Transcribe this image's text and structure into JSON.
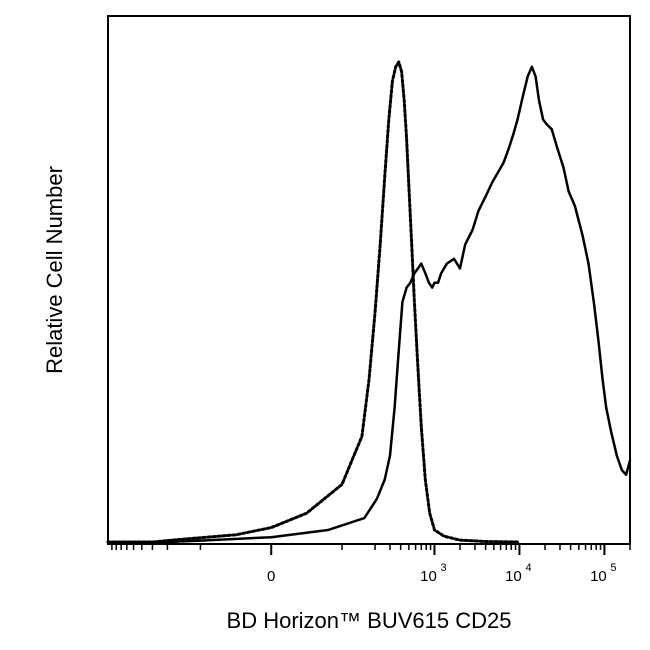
{
  "chart_data": {
    "type": "line",
    "xlabel": "BD Horizon™ BUV615 CD25",
    "ylabel": "Relative Cell Number",
    "x_scale": "biexponential",
    "xlim": [
      -1000,
      200000
    ],
    "ylim": [
      0,
      100
    ],
    "y_ticks_shown": false,
    "grid": false,
    "legend": "none",
    "x_tick_labels": [
      {
        "value": 0,
        "base": "0",
        "exponent": ""
      },
      {
        "value": 1000,
        "base": "10",
        "exponent": "3"
      },
      {
        "value": 10000,
        "base": "10",
        "exponent": "4"
      },
      {
        "value": 100000,
        "base": "10",
        "exponent": "5"
      }
    ],
    "series": [
      {
        "style": "dotted",
        "color": "#000000",
        "points": [
          [
            -1000,
            0
          ],
          [
            -300,
            0
          ],
          [
            -150,
            0.5
          ],
          [
            -50,
            1.5
          ],
          [
            0,
            3
          ],
          [
            50,
            6
          ],
          [
            100,
            12
          ],
          [
            140,
            22
          ],
          [
            170,
            34
          ],
          [
            200,
            48
          ],
          [
            230,
            62
          ],
          [
            260,
            76
          ],
          [
            290,
            88
          ],
          [
            320,
            96
          ],
          [
            350,
            99
          ],
          [
            380,
            100
          ],
          [
            410,
            98
          ],
          [
            440,
            92
          ],
          [
            470,
            84
          ],
          [
            500,
            74
          ],
          [
            540,
            62
          ],
          [
            580,
            50
          ],
          [
            640,
            36
          ],
          [
            700,
            24
          ],
          [
            780,
            13
          ],
          [
            880,
            6
          ],
          [
            1000,
            2.5
          ],
          [
            1300,
            1.2
          ],
          [
            2000,
            0.4
          ],
          [
            4000,
            0.1
          ],
          [
            10000,
            0
          ]
        ]
      },
      {
        "style": "solid",
        "color": "#000000",
        "points": [
          [
            -1000,
            0
          ],
          [
            -200,
            0
          ],
          [
            -100,
            0.3
          ],
          [
            0,
            1
          ],
          [
            80,
            2.5
          ],
          [
            150,
            5
          ],
          [
            210,
            9
          ],
          [
            260,
            13
          ],
          [
            300,
            18
          ],
          [
            340,
            28
          ],
          [
            380,
            40
          ],
          [
            420,
            50
          ],
          [
            470,
            53
          ],
          [
            520,
            54
          ],
          [
            580,
            56
          ],
          [
            640,
            57
          ],
          [
            700,
            58
          ],
          [
            780,
            56
          ],
          [
            860,
            54
          ],
          [
            940,
            53
          ],
          [
            1000,
            54
          ],
          [
            1100,
            54
          ],
          [
            1200,
            56
          ],
          [
            1400,
            58
          ],
          [
            1700,
            59
          ],
          [
            2000,
            57
          ],
          [
            2300,
            62
          ],
          [
            2800,
            65
          ],
          [
            3300,
            69
          ],
          [
            4000,
            72
          ],
          [
            4800,
            75
          ],
          [
            5600,
            77
          ],
          [
            6500,
            79
          ],
          [
            7500,
            82
          ],
          [
            8500,
            85
          ],
          [
            9500,
            88
          ],
          [
            11000,
            93
          ],
          [
            12500,
            97
          ],
          [
            14000,
            99
          ],
          [
            15500,
            97
          ],
          [
            17000,
            92
          ],
          [
            19000,
            88
          ],
          [
            21000,
            87
          ],
          [
            24000,
            86
          ],
          [
            28000,
            82
          ],
          [
            33000,
            78
          ],
          [
            38000,
            73
          ],
          [
            45000,
            70
          ],
          [
            55000,
            64
          ],
          [
            65000,
            58
          ],
          [
            75000,
            50
          ],
          [
            85000,
            42
          ],
          [
            95000,
            34
          ],
          [
            105000,
            28
          ],
          [
            120000,
            23
          ],
          [
            140000,
            18
          ],
          [
            160000,
            15
          ],
          [
            180000,
            14
          ],
          [
            200000,
            17
          ]
        ]
      }
    ]
  }
}
